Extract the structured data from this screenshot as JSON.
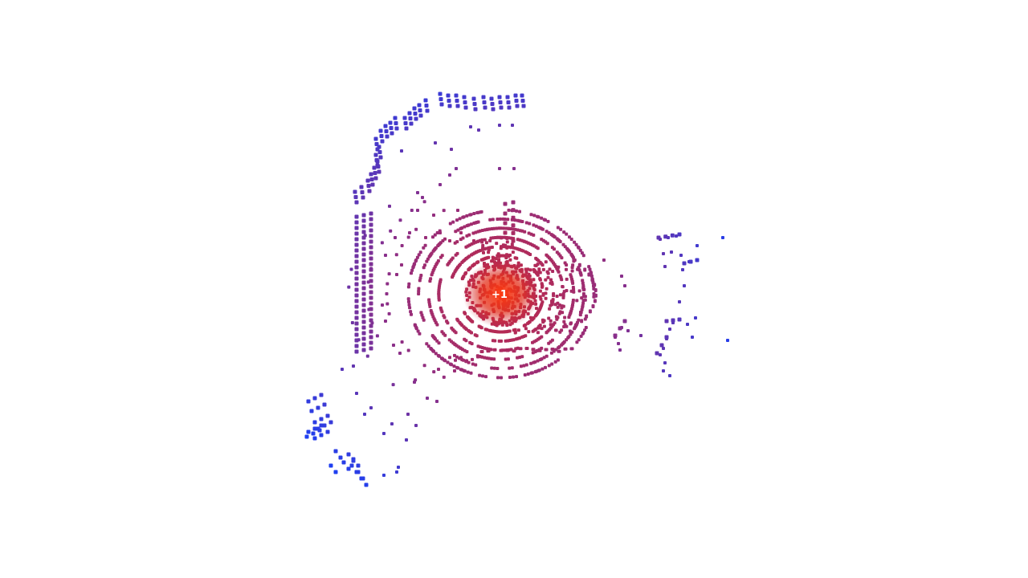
{
  "viewer": {
    "background": "#ffffff",
    "colors": {
      "far": "#1f3ff0",
      "mid": "#8a2f8a",
      "near": "#c8283c",
      "center": "#ff3a10"
    },
    "origin_label": "+1"
  }
}
